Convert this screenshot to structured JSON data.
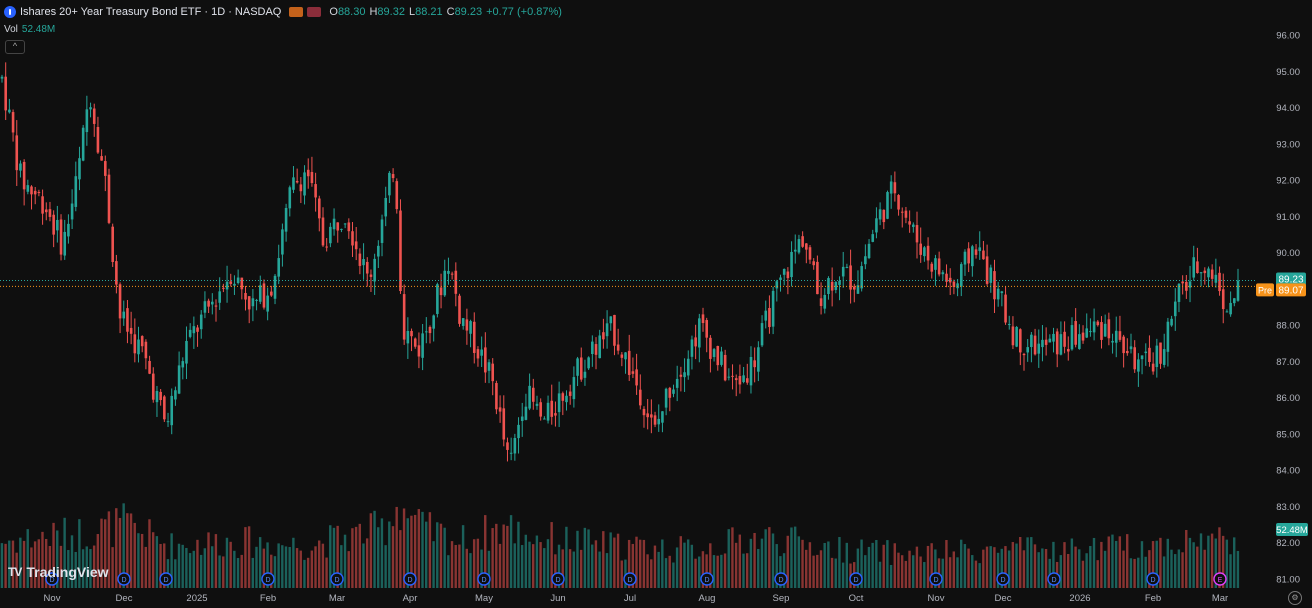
{
  "header": {
    "title": "Ishares 20+ Year Treasury Bond ETF · 1D · NASDAQ",
    "o_label": "O",
    "o_value": "88.30",
    "h_label": "H",
    "h_value": "89.32",
    "l_label": "L",
    "l_value": "88.21",
    "c_label": "C",
    "c_value": "89.23",
    "change": "+0.77 (+0.87%)"
  },
  "volume_legend": {
    "label": "Vol",
    "value": "52.48M"
  },
  "price_labels": {
    "last": "89.23",
    "pre_label": "Pre",
    "pre": "89.07",
    "volume": "52.48M"
  },
  "brand": {
    "logo_text": "TradingView"
  },
  "icons": [
    "info-icon",
    "flag-icon",
    "collapse-icon",
    "tradingview-logo",
    "settings-icon",
    "dividend-marker-icon",
    "earnings-marker-icon"
  ],
  "colors": {
    "up": "#26a69a",
    "down": "#ef5350",
    "background": "#0f0f0f",
    "last_line": "#26a69a",
    "pre_line": "#f7931a"
  },
  "chart_data": {
    "type": "candlestick",
    "title": "Ishares 20+ Year Treasury Bond ETF · 1D · NASDAQ",
    "x_ticks": [
      "Nov",
      "Dec",
      "2025",
      "Feb",
      "Mar",
      "Apr",
      "May",
      "Jun",
      "Jul",
      "Aug",
      "Sep",
      "Oct",
      "Nov",
      "Dec",
      "2026",
      "Feb",
      "Mar"
    ],
    "y_ticks": [
      "96.00",
      "95.00",
      "94.00",
      "93.00",
      "92.00",
      "91.00",
      "90.00",
      "89.00",
      "88.00",
      "87.00",
      "86.00",
      "85.00",
      "84.00",
      "83.00",
      "82.00",
      "81.00"
    ],
    "ylim": [
      81,
      96
    ],
    "last_price": 89.23,
    "pre_market_price": 89.07,
    "grid": false,
    "close_path": [
      {
        "m": 0,
        "p": 94.8
      },
      {
        "m": 0.25,
        "p": 92.0
      },
      {
        "m": 0.55,
        "p": 91.4
      },
      {
        "m": 0.8,
        "p": 90.2
      },
      {
        "m": 1.0,
        "p": 92.2
      },
      {
        "m": 1.15,
        "p": 94.5
      },
      {
        "m": 1.35,
        "p": 92.0
      },
      {
        "m": 1.55,
        "p": 88.2
      },
      {
        "m": 1.85,
        "p": 87.2
      },
      {
        "m": 2.15,
        "p": 85.2
      },
      {
        "m": 2.4,
        "p": 87.4
      },
      {
        "m": 2.75,
        "p": 88.6
      },
      {
        "m": 3.0,
        "p": 89.5
      },
      {
        "m": 3.3,
        "p": 88.5
      },
      {
        "m": 3.55,
        "p": 89.2
      },
      {
        "m": 3.8,
        "p": 91.8
      },
      {
        "m": 4.0,
        "p": 92.3
      },
      {
        "m": 4.2,
        "p": 90.3
      },
      {
        "m": 4.5,
        "p": 91.2
      },
      {
        "m": 4.8,
        "p": 89.2
      },
      {
        "m": 5.05,
        "p": 91.5
      },
      {
        "m": 5.15,
        "p": 92.6
      },
      {
        "m": 5.25,
        "p": 88.0
      },
      {
        "m": 5.45,
        "p": 87.3
      },
      {
        "m": 5.65,
        "p": 88.4
      },
      {
        "m": 5.85,
        "p": 89.8
      },
      {
        "m": 6.0,
        "p": 88.3
      },
      {
        "m": 6.25,
        "p": 87.3
      },
      {
        "m": 6.45,
        "p": 86.3
      },
      {
        "m": 6.65,
        "p": 84.0
      },
      {
        "m": 6.85,
        "p": 86.2
      },
      {
        "m": 7.1,
        "p": 85.3
      },
      {
        "m": 7.4,
        "p": 86.3
      },
      {
        "m": 7.7,
        "p": 87.2
      },
      {
        "m": 8.0,
        "p": 87.9
      },
      {
        "m": 8.15,
        "p": 87.2
      },
      {
        "m": 8.4,
        "p": 86.0
      },
      {
        "m": 8.55,
        "p": 85.0
      },
      {
        "m": 8.75,
        "p": 86.3
      },
      {
        "m": 9.0,
        "p": 87.3
      },
      {
        "m": 9.15,
        "p": 88.0
      },
      {
        "m": 9.4,
        "p": 87.0
      },
      {
        "m": 9.6,
        "p": 86.3
      },
      {
        "m": 9.85,
        "p": 87.0
      },
      {
        "m": 10.1,
        "p": 88.6
      },
      {
        "m": 10.3,
        "p": 89.6
      },
      {
        "m": 10.5,
        "p": 90.5
      },
      {
        "m": 10.7,
        "p": 88.8
      },
      {
        "m": 10.95,
        "p": 89.5
      },
      {
        "m": 11.2,
        "p": 89.2
      },
      {
        "m": 11.45,
        "p": 90.8
      },
      {
        "m": 11.7,
        "p": 91.8
      },
      {
        "m": 11.95,
        "p": 90.5
      },
      {
        "m": 12.2,
        "p": 89.7
      },
      {
        "m": 12.5,
        "p": 89.0
      },
      {
        "m": 12.75,
        "p": 90.3
      },
      {
        "m": 13.05,
        "p": 88.8
      },
      {
        "m": 13.3,
        "p": 87.6
      },
      {
        "m": 13.6,
        "p": 87.4
      },
      {
        "m": 13.9,
        "p": 87.5
      },
      {
        "m": 14.2,
        "p": 87.8
      },
      {
        "m": 14.45,
        "p": 88.0
      },
      {
        "m": 14.7,
        "p": 87.4
      },
      {
        "m": 14.95,
        "p": 86.8
      },
      {
        "m": 15.2,
        "p": 87.3
      },
      {
        "m": 15.4,
        "p": 88.7
      },
      {
        "m": 15.7,
        "p": 89.8
      },
      {
        "m": 15.9,
        "p": 89.3
      },
      {
        "m": 16.1,
        "p": 88.3
      },
      {
        "m": 16.2,
        "p": 89.23
      }
    ],
    "volume_profile": [
      {
        "m": 0,
        "v": 0.55
      },
      {
        "m": 1.1,
        "v": 0.65
      },
      {
        "m": 1.6,
        "v": 0.75
      },
      {
        "m": 2.2,
        "v": 0.5
      },
      {
        "m": 3.0,
        "v": 0.55
      },
      {
        "m": 4.0,
        "v": 0.5
      },
      {
        "m": 5.0,
        "v": 0.7
      },
      {
        "m": 5.2,
        "v": 1.0
      },
      {
        "m": 5.5,
        "v": 0.7
      },
      {
        "m": 6.0,
        "v": 0.55
      },
      {
        "m": 6.6,
        "v": 0.72
      },
      {
        "m": 7.0,
        "v": 0.6
      },
      {
        "m": 8.0,
        "v": 0.5
      },
      {
        "m": 9.0,
        "v": 0.45
      },
      {
        "m": 10.0,
        "v": 0.6
      },
      {
        "m": 11.0,
        "v": 0.45
      },
      {
        "m": 12.0,
        "v": 0.4
      },
      {
        "m": 13.0,
        "v": 0.45
      },
      {
        "m": 14.0,
        "v": 0.45
      },
      {
        "m": 15.0,
        "v": 0.5
      },
      {
        "m": 16.2,
        "v": 0.6
      }
    ],
    "volume_last": "52.48M",
    "event_markers": [
      "D",
      "D",
      "D",
      "D",
      "D",
      "D",
      "D",
      "D",
      "D",
      "D",
      "D",
      "D",
      "D",
      "D",
      "D",
      "D",
      "E"
    ]
  }
}
